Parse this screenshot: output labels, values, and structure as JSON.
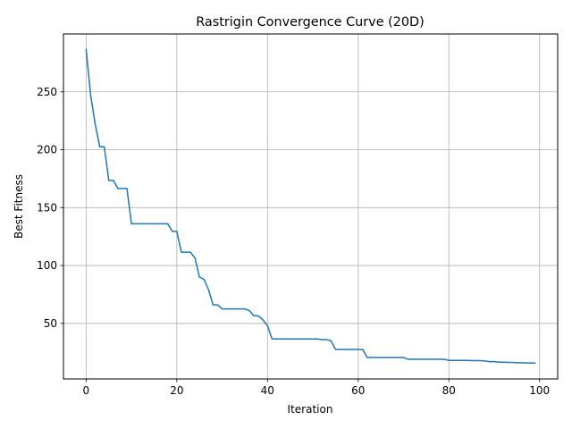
{
  "chart_data": {
    "type": "line",
    "title": "Rastrigin Convergence Curve (20D)",
    "xlabel": "Iteration",
    "ylabel": "Best Fitness",
    "xlim": [
      -5,
      104
    ],
    "ylim": [
      2,
      300
    ],
    "xticks": [
      0,
      20,
      40,
      60,
      80,
      100
    ],
    "yticks": [
      50,
      100,
      150,
      200,
      250
    ],
    "grid": true,
    "line_color": "#1f77b4",
    "series": [
      {
        "values": [
          286.5,
          247.0,
          222.0,
          202.5,
          202.5,
          173.5,
          173.5,
          166.5,
          166.5,
          166.5,
          136.0,
          136.0,
          136.0,
          136.0,
          136.0,
          136.0,
          136.0,
          136.0,
          136.0,
          129.5,
          129.5,
          111.5,
          111.5,
          111.5,
          106.5,
          90.0,
          88.0,
          79.0,
          66.0,
          66.0,
          62.5,
          62.5,
          62.5,
          62.5,
          62.5,
          62.5,
          61.0,
          56.5,
          56.5,
          53.0,
          48.0,
          36.5,
          36.5,
          36.5,
          36.5,
          36.5,
          36.5,
          36.5,
          36.5,
          36.5,
          36.5,
          36.5,
          36.0,
          36.0,
          35.0,
          27.5,
          27.5,
          27.5,
          27.5,
          27.5,
          27.5,
          27.5,
          20.5,
          20.5,
          20.5,
          20.5,
          20.5,
          20.5,
          20.5,
          20.5,
          20.5,
          19.0,
          19.0,
          19.0,
          19.0,
          19.0,
          19.0,
          19.0,
          19.0,
          19.0,
          18.0,
          18.0,
          18.0,
          18.0,
          18.0,
          17.8,
          17.8,
          17.8,
          17.5,
          17.0,
          17.0,
          16.5,
          16.5,
          16.3,
          16.3,
          16.0,
          16.0,
          15.9,
          15.8,
          15.7
        ]
      }
    ]
  }
}
